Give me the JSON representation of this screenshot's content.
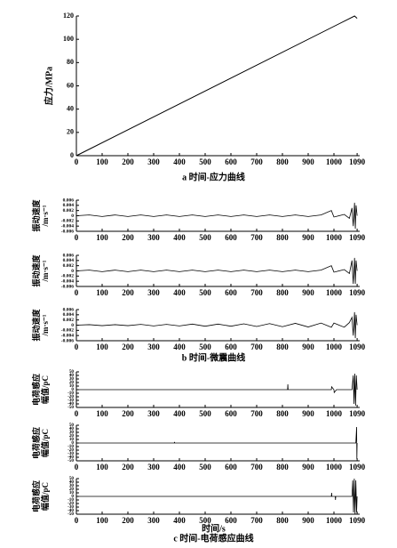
{
  "chart_data": [
    {
      "type": "line",
      "ylabel": [
        "应力/MPa"
      ],
      "caption": "a 时间-应力曲线",
      "x": [
        0,
        1080,
        1090
      ],
      "values": [
        0,
        120,
        118
      ],
      "color": "#000000",
      "xlim": [
        0,
        1100
      ],
      "ylim": [
        0,
        120
      ],
      "xticks": [
        0,
        100,
        200,
        300,
        400,
        500,
        600,
        700,
        800,
        900,
        1000,
        1090
      ],
      "yticks": [
        0,
        20,
        40,
        60,
        80,
        100,
        120
      ]
    },
    {
      "type": "line",
      "ylabel": [
        "振动速度",
        "/m·s⁻¹"
      ],
      "x": [
        0,
        50,
        100,
        150,
        200,
        250,
        300,
        350,
        400,
        450,
        500,
        550,
        600,
        650,
        700,
        750,
        800,
        850,
        900,
        950,
        990,
        1000,
        1040,
        1060,
        1070,
        1075,
        1080,
        1083,
        1086,
        1090
      ],
      "values": [
        0,
        0.0003,
        -0.0003,
        0.0003,
        -0.0003,
        0.0003,
        -0.0003,
        0.0003,
        -0.0003,
        0.0003,
        -0.0003,
        0.0003,
        -0.0003,
        0.0003,
        -0.0003,
        0.0003,
        -0.0003,
        0.0003,
        -0.0003,
        0.0003,
        0.002,
        -0.0005,
        0.0005,
        -0.001,
        0.003,
        -0.004,
        0.005,
        -0.005,
        0.004,
        0
      ],
      "color": "#000000",
      "xlim": [
        0,
        1100
      ],
      "ylim": [
        -0.006,
        0.006
      ],
      "xticks": [
        0,
        100,
        200,
        300,
        400,
        500,
        600,
        700,
        800,
        900,
        1000,
        1090
      ],
      "yticks": [
        0.006,
        0.004,
        0.002,
        0,
        -0.002,
        -0.004,
        -0.006
      ]
    },
    {
      "type": "line",
      "ylabel": [
        "振动速度",
        "/m·s⁻¹"
      ],
      "x": [
        0,
        50,
        100,
        150,
        200,
        250,
        300,
        350,
        400,
        450,
        500,
        550,
        600,
        650,
        700,
        750,
        800,
        850,
        900,
        950,
        990,
        1000,
        1040,
        1060,
        1070,
        1075,
        1080,
        1083,
        1086,
        1090
      ],
      "values": [
        0,
        0.0003,
        -0.0003,
        0.0003,
        -0.0003,
        0.0003,
        -0.0003,
        0.0003,
        -0.0003,
        0.0003,
        -0.0003,
        0.0003,
        -0.0003,
        0.0003,
        -0.0003,
        0.0003,
        -0.0003,
        0.0003,
        -0.0003,
        0.0003,
        0.002,
        -0.0005,
        0.0005,
        -0.001,
        0.004,
        -0.005,
        0.005,
        -0.005,
        0.004,
        0
      ],
      "color": "#000000",
      "xlim": [
        0,
        1100
      ],
      "ylim": [
        -0.006,
        0.006
      ],
      "xticks": [
        0,
        100,
        200,
        300,
        400,
        500,
        600,
        700,
        800,
        900,
        1000,
        1090
      ],
      "yticks": [
        0.006,
        0.004,
        0.002,
        0,
        -0.002,
        -0.004,
        -0.006
      ]
    },
    {
      "type": "line",
      "ylabel": [
        "振动速度",
        "/m·s⁻¹"
      ],
      "caption": "b 时间-微震曲线",
      "x": [
        0,
        50,
        100,
        150,
        200,
        250,
        300,
        350,
        400,
        450,
        500,
        550,
        600,
        650,
        700,
        750,
        800,
        850,
        900,
        950,
        990,
        1000,
        1040,
        1060,
        1070,
        1075,
        1080,
        1083,
        1086,
        1090
      ],
      "values": [
        0,
        0.0002,
        -0.0002,
        0.0002,
        -0.0002,
        0.0003,
        -0.0003,
        0.0003,
        -0.0003,
        0.0004,
        -0.0004,
        0.0004,
        -0.0004,
        0.0005,
        -0.0005,
        0.0006,
        -0.0006,
        0.0007,
        -0.0007,
        0.0008,
        -0.0008,
        0.0008,
        -0.0008,
        0.001,
        0.003,
        -0.004,
        0.005,
        -0.005,
        0.004,
        0
      ],
      "color": "#000000",
      "xlim": [
        0,
        1100
      ],
      "ylim": [
        -0.006,
        0.006
      ],
      "xticks": [
        0,
        100,
        200,
        300,
        400,
        500,
        600,
        700,
        800,
        900,
        1000,
        1090
      ],
      "yticks": [
        0.006,
        0.004,
        0.002,
        0,
        -0.002,
        -0.004,
        -0.006
      ]
    },
    {
      "type": "line",
      "ylabel": [
        "电荷感应",
        "幅值/pC"
      ],
      "x": [
        0,
        700,
        820,
        821,
        822,
        950,
        990,
        991,
        1000,
        1001,
        1010,
        1070,
        1075,
        1078,
        1081,
        1084,
        1087,
        1090
      ],
      "values": [
        0,
        0,
        0,
        15,
        0,
        0,
        0,
        8,
        0,
        -8,
        0,
        0,
        40,
        -40,
        45,
        -45,
        40,
        0
      ],
      "color": "#000000",
      "xlim": [
        0,
        1100
      ],
      "ylim": [
        -50,
        50
      ],
      "xticks": [
        0,
        100,
        200,
        300,
        400,
        500,
        600,
        700,
        800,
        900,
        1000,
        1090
      ],
      "yticks": [
        50,
        40,
        30,
        20,
        10,
        0,
        -10,
        -20,
        -30,
        -40,
        -50
      ]
    },
    {
      "type": "line",
      "ylabel": [
        "电荷感应",
        "幅值/pC"
      ],
      "x": [
        0,
        380,
        381,
        382,
        1085,
        1088,
        1089,
        1090
      ],
      "values": [
        0,
        0,
        3,
        0,
        0,
        45,
        -45,
        0
      ],
      "color": "#000000",
      "xlim": [
        0,
        1100
      ],
      "ylim": [
        -50,
        50
      ],
      "xticks": [
        0,
        100,
        200,
        300,
        400,
        500,
        600,
        700,
        800,
        900,
        1000,
        1090
      ],
      "yticks": [
        50,
        40,
        30,
        20,
        10,
        0,
        -10,
        -20,
        -30,
        -40,
        -50
      ]
    },
    {
      "type": "line",
      "ylabel": [
        "电荷感应",
        "幅值/pC"
      ],
      "xlabel": "时间/s",
      "caption": "c 时间-电荷感应曲线",
      "x": [
        0,
        990,
        991,
        992,
        1005,
        1006,
        1007,
        1070,
        1073,
        1076,
        1079,
        1082,
        1085,
        1088,
        1090
      ],
      "values": [
        0,
        0,
        10,
        0,
        0,
        -10,
        0,
        0,
        45,
        -45,
        50,
        -50,
        45,
        -45,
        0
      ],
      "color": "#000000",
      "xlim": [
        0,
        1100
      ],
      "ylim": [
        -50,
        50
      ],
      "xticks": [
        0,
        100,
        200,
        300,
        400,
        500,
        600,
        700,
        800,
        900,
        1000,
        1090
      ],
      "yticks": [
        50,
        40,
        30,
        20,
        10,
        0,
        -10,
        -20,
        -30,
        -40,
        -50
      ]
    }
  ]
}
